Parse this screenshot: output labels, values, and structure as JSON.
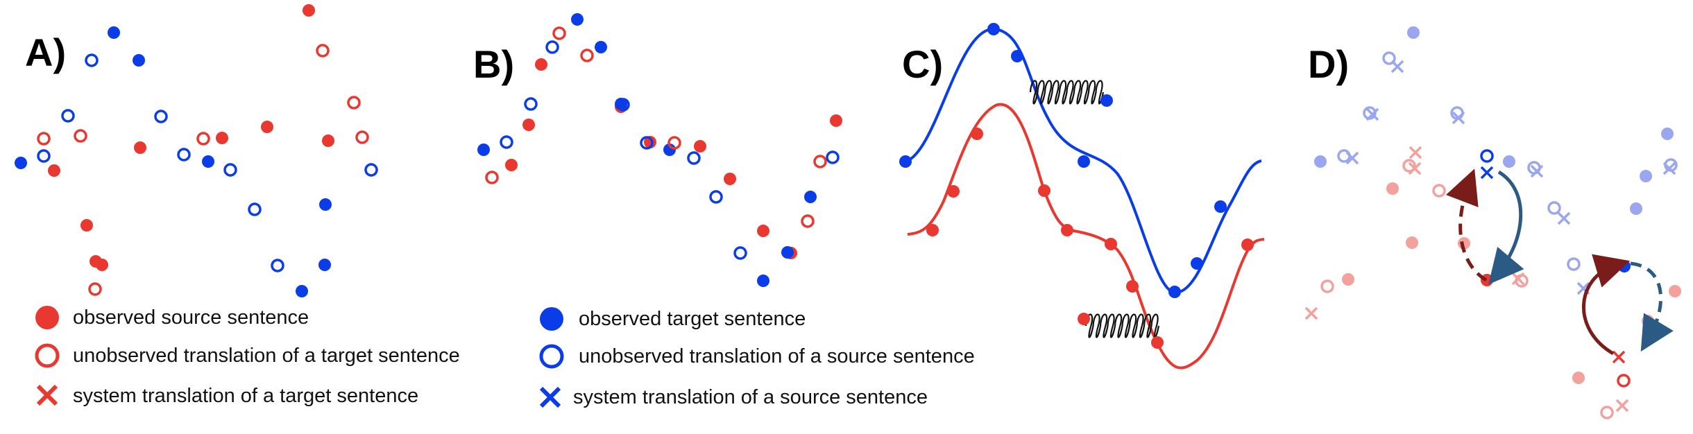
{
  "panels": {
    "a": "A)",
    "b": "B)",
    "c": "C)",
    "d": "D)"
  },
  "legend": {
    "observed_source": "observed source sentence",
    "unobserved_target_translation": "unobserved translation of a target sentence",
    "system_target_translation": "system translation of a target sentence",
    "observed_target": "observed target sentence",
    "unobserved_source_translation": "unobserved  translation of a source sentence",
    "system_source_translation": "system translation of a source sentence"
  },
  "colors": {
    "red": "#e8382f",
    "blue": "#0a3de8",
    "dark_red": "#7a1d1a",
    "steel_blue": "#2b5a85"
  }
}
